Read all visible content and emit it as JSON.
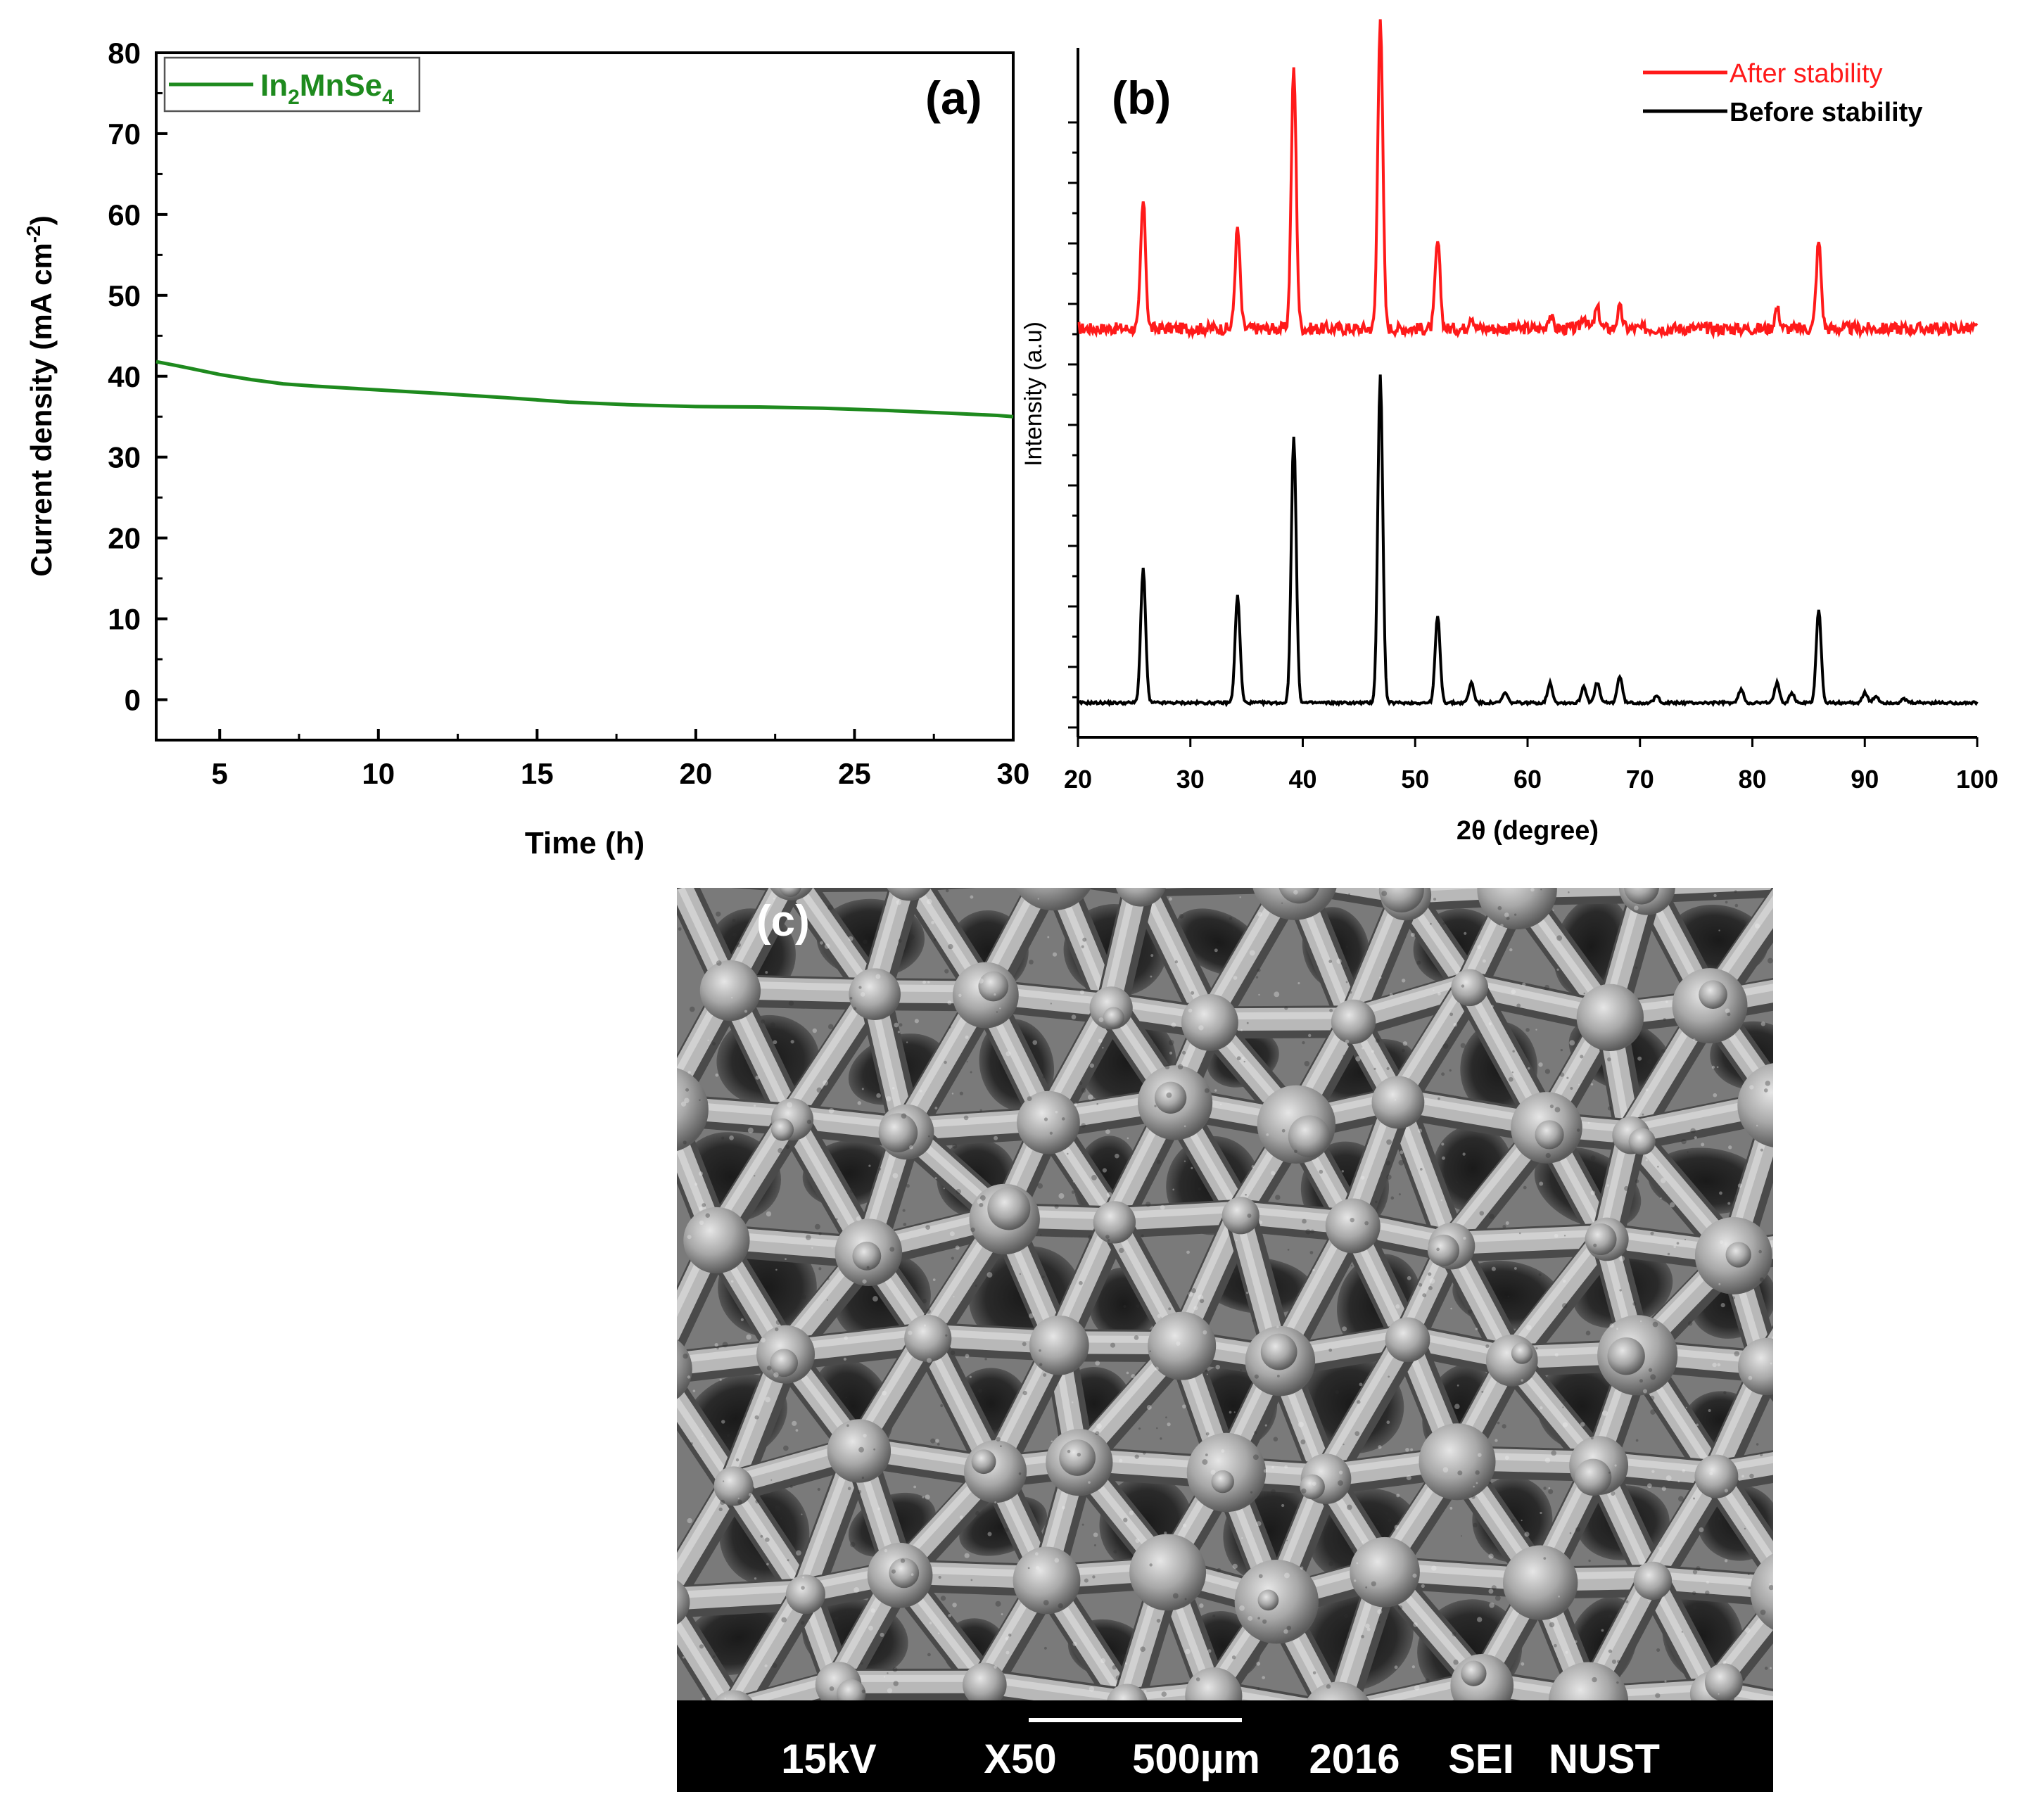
{
  "chart_data": [
    {
      "panel": "(a)",
      "type": "line",
      "xlabel": "Time (h)",
      "ylabel_main": "Current density (mA cm",
      "ylabel_sup": "-2",
      "ylabel_close": ")",
      "xlim": [
        3,
        30
      ],
      "ylim": [
        -5,
        80
      ],
      "xticks": [
        5,
        10,
        15,
        20,
        25,
        30
      ],
      "yticks": [
        0,
        10,
        20,
        30,
        40,
        50,
        60,
        70,
        80
      ],
      "legend": "top-left",
      "series": [
        {
          "name_parts": [
            "In",
            "2",
            "MnSe",
            "4"
          ],
          "color": "#1e8a1e",
          "x": [
            3,
            3.5,
            4,
            5,
            6,
            7,
            8,
            10,
            12,
            14,
            16,
            18,
            20,
            22,
            24,
            26,
            28,
            29.5,
            30
          ],
          "y": [
            41.8,
            41.3,
            40.9,
            40.2,
            39.7,
            39.2,
            38.8,
            38.2,
            37.7,
            37.3,
            36.9,
            36.6,
            36.3,
            36.1,
            35.9,
            35.7,
            35.5,
            35.3,
            35.0
          ]
        }
      ]
    },
    {
      "panel": "(b)",
      "type": "line",
      "xlabel": "2θ (degree)",
      "ylabel": "Intensity (a.u)",
      "xlim": [
        20,
        100
      ],
      "xticks": [
        20,
        30,
        40,
        50,
        60,
        70,
        80,
        90,
        100
      ],
      "ylim": [
        0,
        1
      ],
      "legend": "top-right",
      "series": [
        {
          "name": "After stability",
          "color": "#ff1a1a",
          "baseline": 0.58,
          "peaks": [
            [
              25.8,
              0.19
            ],
            [
              34.2,
              0.15
            ],
            [
              39.2,
              0.39
            ],
            [
              46.9,
              0.47
            ],
            [
              52.0,
              0.13
            ],
            [
              55.0,
              0.02
            ],
            [
              62.0,
              0.02
            ],
            [
              65.0,
              0.02
            ],
            [
              66.2,
              0.03
            ],
            [
              68.2,
              0.03
            ],
            [
              82.2,
              0.03
            ],
            [
              85.9,
              0.13
            ]
          ]
        },
        {
          "name": "Before stability",
          "color": "#000000",
          "baseline": 0.02,
          "peaks": [
            [
              25.8,
              0.2
            ],
            [
              34.2,
              0.16
            ],
            [
              39.2,
              0.4
            ],
            [
              46.9,
              0.49
            ],
            [
              52.0,
              0.13
            ],
            [
              55.0,
              0.03
            ],
            [
              58.0,
              0.015
            ],
            [
              62.0,
              0.03
            ],
            [
              65.0,
              0.025
            ],
            [
              66.2,
              0.03
            ],
            [
              68.2,
              0.04
            ],
            [
              71.5,
              0.01
            ],
            [
              79.0,
              0.02
            ],
            [
              82.2,
              0.03
            ],
            [
              83.5,
              0.015
            ],
            [
              85.9,
              0.14
            ],
            [
              90.0,
              0.015
            ],
            [
              91.0,
              0.01
            ],
            [
              93.5,
              0.005
            ]
          ]
        }
      ]
    }
  ],
  "micrograph": {
    "panel": "(c)",
    "info_bar": [
      "15kV",
      "X50",
      "500µm",
      "2016",
      "SEI",
      "NUST"
    ]
  }
}
